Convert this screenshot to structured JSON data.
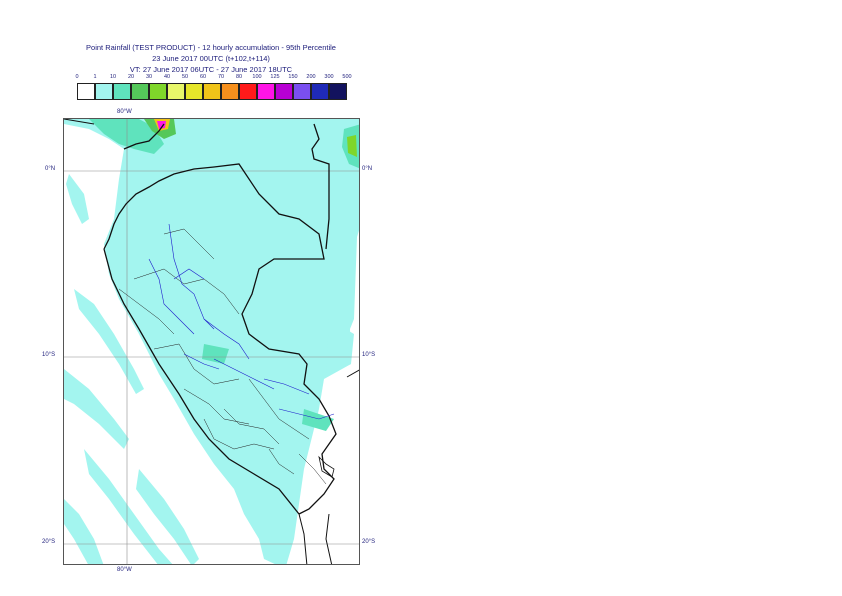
{
  "title": {
    "line1": "Point Rainfall (TEST PRODUCT) - 12 hourly accumulation - 95th Percentile",
    "line2": "23 June 2017 00UTC (t+102,t+114)",
    "line3": "VT: 27 June 2017 06UTC - 27 June 2017 18UTC"
  },
  "legend": {
    "thresholds": [
      "0",
      "1",
      "10",
      "20",
      "30",
      "40",
      "50",
      "60",
      "70",
      "80",
      "100",
      "125",
      "150",
      "200",
      "300",
      "500"
    ],
    "colors": [
      "#ffffff",
      "#a3f5ef",
      "#5fe3bd",
      "#55c85a",
      "#7fd62a",
      "#e8f76a",
      "#e6e62a",
      "#f0c419",
      "#f7901d",
      "#ff1a1a",
      "#ff14e6",
      "#b800d4",
      "#7a4ff0",
      "#1f2ab8",
      "#12125e"
    ]
  },
  "axes": {
    "lon_top": "80°W",
    "lon_bottom": "80°W",
    "lat_0": "0°N",
    "lat_10": "10°S",
    "lat_20": "20°S"
  }
}
